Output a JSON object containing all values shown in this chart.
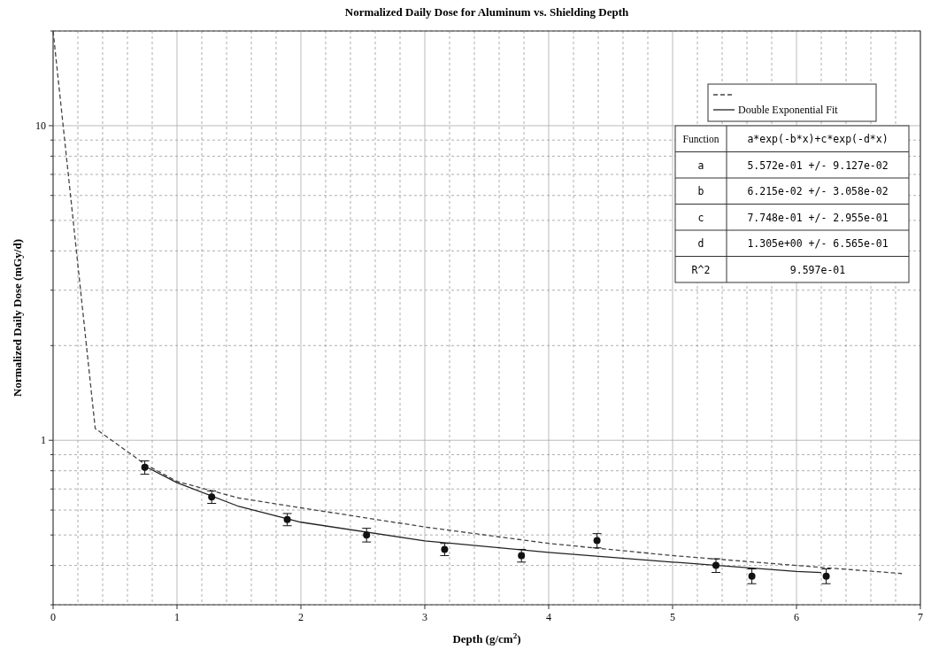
{
  "chart_data": {
    "type": "line",
    "title": "Normalized Daily Dose for Aluminum vs. Shielding Depth",
    "xlabel": "Depth (g/cm$^{2}$)",
    "ylabel": "Normalized Daily Dose (mGy/d)",
    "xlim": [
      0,
      7
    ],
    "xticks": [
      0,
      1,
      2,
      3,
      4,
      5,
      6,
      7
    ],
    "ylim": [
      0.3,
      20
    ],
    "yticks": [
      {
        "value": 0.3,
        "label": null
      },
      {
        "value": 0.4,
        "label": null
      },
      {
        "value": 0.5,
        "label": null
      },
      {
        "value": 0.6,
        "label": null
      },
      {
        "value": 0.7,
        "label": null
      },
      {
        "value": 0.8,
        "label": null
      },
      {
        "value": 0.9,
        "label": null
      },
      1,
      {
        "value": 2,
        "label": null
      },
      {
        "value": 3,
        "label": null
      },
      {
        "value": 4,
        "label": null
      },
      {
        "value": 5,
        "label": null
      },
      {
        "value": 6,
        "label": null
      },
      {
        "value": 7,
        "label": null
      },
      {
        "value": 8,
        "label": null
      },
      {
        "value": 9,
        "label": null
      },
      10,
      {
        "value": 20,
        "label": null
      }
    ],
    "log": "y",
    "grid": true,
    "legend": "top right",
    "series": [
      {
        "line_style": "dashed",
        "color": "#444444",
        "x": [
          0,
          0.34,
          0.74,
          1,
          1.5,
          2,
          3,
          4,
          5,
          6,
          6.85
        ],
        "values": [
          20,
          1.09,
          0.84,
          0.74,
          0.655,
          0.61,
          0.53,
          0.47,
          0.43,
          0.4,
          0.377
        ]
      },
      {
        "name": "Double Exponential Fit",
        "line_style": "solid",
        "color": "#222222",
        "x": [
          0.74,
          1,
          1.5,
          2,
          3,
          4,
          5,
          6,
          6.2
        ],
        "values": [
          0.827,
          0.733,
          0.616,
          0.549,
          0.479,
          0.44,
          0.41,
          0.383,
          0.38
        ]
      },
      {
        "type": "scatter",
        "marker": "circle",
        "color": "#111111",
        "x": [
          0.74,
          1.28,
          1.89,
          2.53,
          3.16,
          3.78,
          4.39,
          5.35,
          5.64,
          6.24
        ],
        "values": [
          0.82,
          0.66,
          0.56,
          0.5,
          0.45,
          0.43,
          0.48,
          0.4,
          0.37,
          0.37
        ],
        "errors": [
          0.04,
          0.03,
          0.025,
          0.025,
          0.02,
          0.02,
          0.025,
          0.02,
          0.02,
          0.02
        ]
      }
    ],
    "annotations": [
      "Function",
      "a*exp(-b*x)+c*exp(-d*x)",
      "a",
      "5.572e-01 +/- 9.127e-02",
      "b",
      "6.215e-02 +/- 3.058e-02",
      "c",
      "7.748e-01 +/- 2.955e-01",
      "d",
      "1.305e+00 +/- 6.565e-01",
      "R^2",
      "9.597e-01"
    ]
  }
}
